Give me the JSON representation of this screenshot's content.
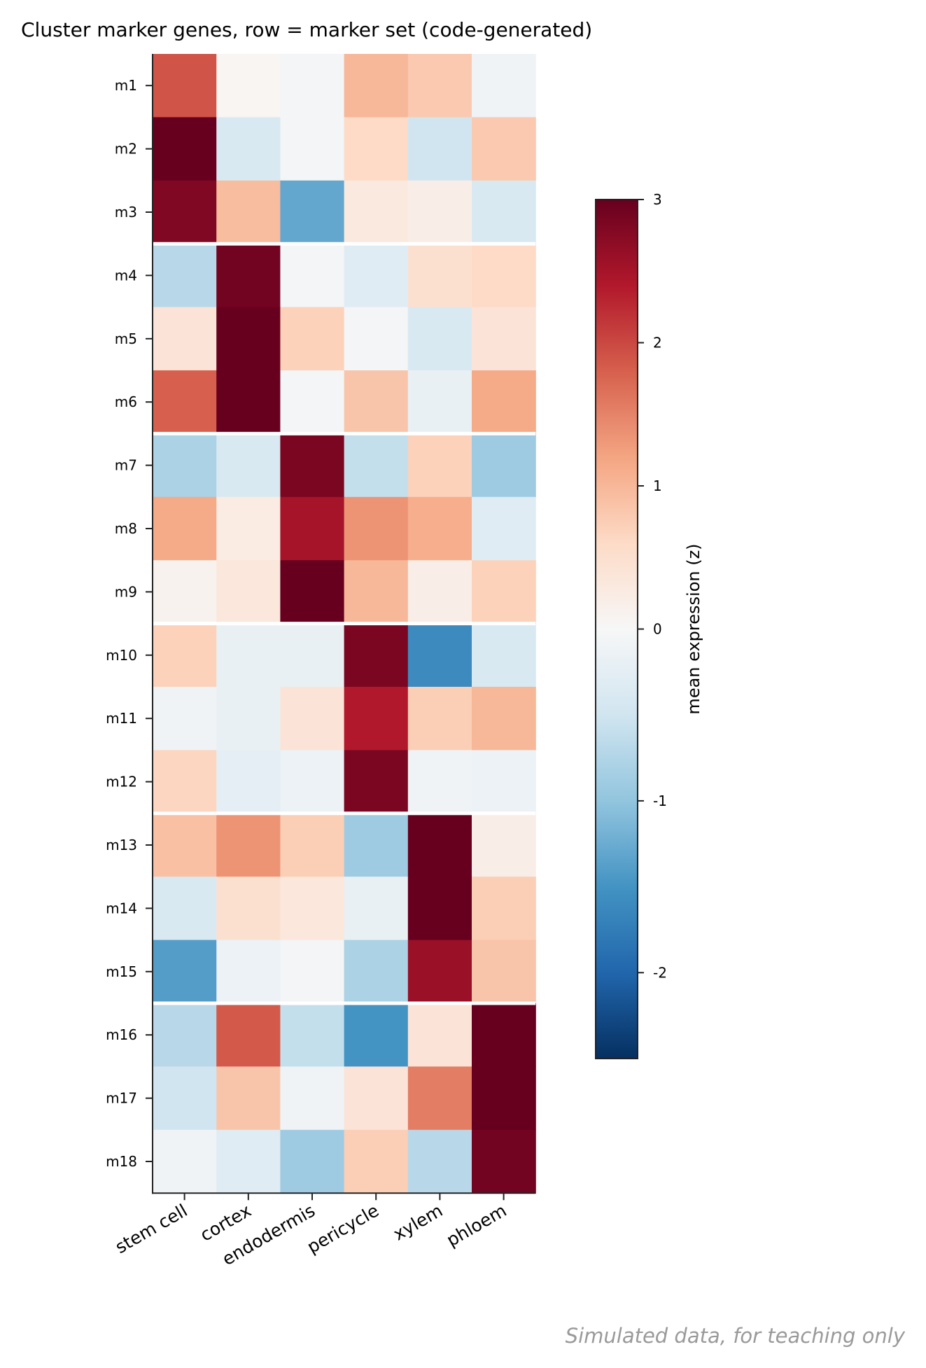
{
  "chart_data": {
    "type": "heatmap",
    "title": "Cluster marker genes, row = marker set (code-generated)",
    "columns": [
      "stem cell",
      "cortex",
      "endodermis",
      "pericycle",
      "xylem",
      "phloem"
    ],
    "rows": [
      "m1",
      "m2",
      "m3",
      "m4",
      "m5",
      "m6",
      "m7",
      "m8",
      "m9",
      "m10",
      "m11",
      "m12",
      "m13",
      "m14",
      "m15",
      "m16",
      "m17",
      "m18"
    ],
    "values": [
      [
        1.9,
        0.05,
        -0.05,
        1.0,
        0.8,
        -0.1
      ],
      [
        3.0,
        -0.4,
        -0.05,
        0.6,
        -0.5,
        0.8
      ],
      [
        2.8,
        0.95,
        -1.3,
        0.3,
        0.2,
        -0.4
      ],
      [
        -0.7,
        2.9,
        -0.05,
        -0.3,
        0.5,
        0.6
      ],
      [
        0.4,
        3.0,
        0.7,
        -0.05,
        -0.4,
        0.4
      ],
      [
        1.8,
        3.0,
        -0.05,
        0.85,
        -0.2,
        1.15
      ],
      [
        -0.8,
        -0.4,
        2.85,
        -0.6,
        0.7,
        -0.9
      ],
      [
        1.15,
        0.25,
        2.5,
        1.35,
        1.1,
        -0.3
      ],
      [
        0.1,
        0.35,
        3.0,
        1.0,
        0.2,
        0.7
      ],
      [
        0.7,
        -0.2,
        -0.2,
        2.85,
        -1.6,
        -0.4
      ],
      [
        -0.1,
        -0.2,
        0.4,
        2.4,
        0.75,
        1.0
      ],
      [
        0.65,
        -0.25,
        -0.15,
        2.85,
        -0.1,
        -0.15
      ],
      [
        0.9,
        1.35,
        0.75,
        -0.9,
        3.0,
        0.2
      ],
      [
        -0.4,
        0.5,
        0.35,
        -0.2,
        3.0,
        0.75
      ],
      [
        -1.4,
        -0.15,
        -0.05,
        -0.8,
        2.6,
        0.85
      ],
      [
        -0.7,
        1.85,
        -0.6,
        -1.5,
        0.4,
        3.0
      ],
      [
        -0.5,
        0.85,
        -0.1,
        0.4,
        1.55,
        3.0
      ],
      [
        -0.1,
        -0.3,
        -0.9,
        0.75,
        -0.7,
        2.9
      ]
    ],
    "group_boundaries_after_row": [
      3,
      6,
      9,
      12,
      15
    ],
    "colorbar": {
      "label": "mean expression (z)",
      "range": [
        -2.5,
        3
      ],
      "ticks": [
        -2,
        -1,
        0,
        1,
        2,
        3
      ],
      "center": 0,
      "colormap": "RdBu_r"
    },
    "colormap_stops": [
      {
        "t": 0.0,
        "color": "#053061"
      },
      {
        "t": 0.1,
        "color": "#2166ac"
      },
      {
        "t": 0.2,
        "color": "#4393c3"
      },
      {
        "t": 0.3,
        "color": "#92c5de"
      },
      {
        "t": 0.4,
        "color": "#d1e5f0"
      },
      {
        "t": 0.5,
        "color": "#f7f7f7"
      },
      {
        "t": 0.6,
        "color": "#fddbc7"
      },
      {
        "t": 0.7,
        "color": "#f4a582"
      },
      {
        "t": 0.8,
        "color": "#d6604d"
      },
      {
        "t": 0.9,
        "color": "#b2182b"
      },
      {
        "t": 1.0,
        "color": "#67001f"
      }
    ]
  },
  "footer": {
    "note": "Simulated data, for teaching only"
  }
}
